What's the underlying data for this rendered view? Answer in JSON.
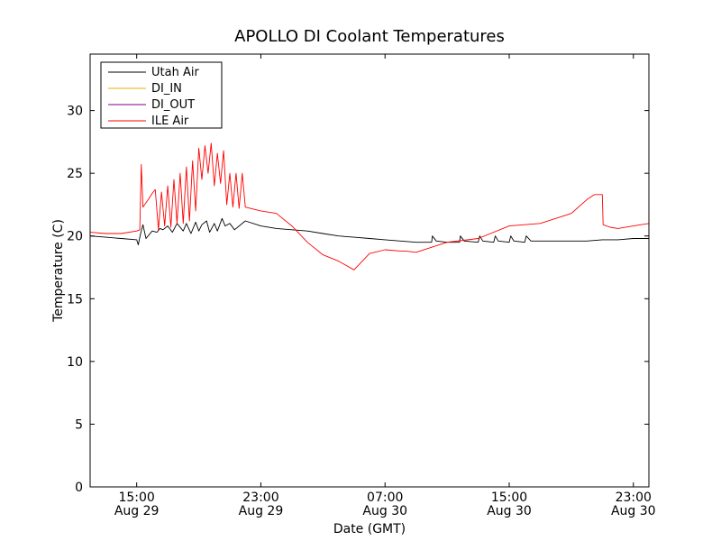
{
  "chart_data": {
    "type": "line",
    "title": "APOLLO DI Coolant Temperatures",
    "xlabel": "Date (GMT)",
    "ylabel": "Temperature (C)",
    "x_unit": "hours since Aug 29 12:00 GMT",
    "xlim": [
      0,
      36
    ],
    "ylim": [
      0,
      34.5
    ],
    "y_ticks": [
      0,
      5,
      10,
      15,
      20,
      25,
      30
    ],
    "x_ticks": [
      {
        "x": 3,
        "time": "15:00",
        "date": "Aug 29"
      },
      {
        "x": 11,
        "time": "23:00",
        "date": "Aug 29"
      },
      {
        "x": 19,
        "time": "07:00",
        "date": "Aug 30"
      },
      {
        "x": 27,
        "time": "15:00",
        "date": "Aug 30"
      },
      {
        "x": 35,
        "time": "23:00",
        "date": "Aug 30"
      }
    ],
    "legend_position": "top-left",
    "series": [
      {
        "name": "Utah Air",
        "color": "#000000",
        "x": [
          0,
          1,
          2,
          3,
          3.1,
          3.25,
          3.4,
          3.6,
          4,
          4.3,
          4.5,
          4.7,
          5,
          5.3,
          5.6,
          6,
          6.2,
          6.5,
          6.8,
          7,
          7.2,
          7.5,
          7.7,
          8,
          8.2,
          8.5,
          8.7,
          9,
          9.3,
          10,
          11,
          12,
          13,
          14,
          15,
          16,
          17,
          18,
          19,
          20,
          21,
          22,
          22.05,
          22.3,
          23,
          23.8,
          23.85,
          24.1,
          25,
          25.1,
          25.3,
          26,
          26.1,
          26.3,
          27,
          27.1,
          27.3,
          28,
          28.1,
          28.4,
          29,
          30,
          31,
          32,
          33,
          34,
          35,
          36
        ],
        "y": [
          20.0,
          19.9,
          19.8,
          19.7,
          19.3,
          20.2,
          20.9,
          19.8,
          20.4,
          20.3,
          20.6,
          20.5,
          20.8,
          20.3,
          21.0,
          20.4,
          21.0,
          20.2,
          21.1,
          20.4,
          20.9,
          21.2,
          20.3,
          21.0,
          20.4,
          21.4,
          20.8,
          21.0,
          20.5,
          21.2,
          20.8,
          20.6,
          20.5,
          20.4,
          20.2,
          20.0,
          19.9,
          19.8,
          19.7,
          19.6,
          19.5,
          19.5,
          20.0,
          19.6,
          19.5,
          19.5,
          20.0,
          19.6,
          19.5,
          20.0,
          19.6,
          19.5,
          20.0,
          19.6,
          19.5,
          20.0,
          19.6,
          19.5,
          20.0,
          19.6,
          19.6,
          19.6,
          19.6,
          19.6,
          19.7,
          19.7,
          19.8,
          19.8
        ]
      },
      {
        "name": "DI_IN",
        "color": "#e8b000",
        "x": [],
        "y": []
      },
      {
        "name": "DI_OUT",
        "color": "#800080",
        "x": [],
        "y": []
      },
      {
        "name": "ILE Air",
        "color": "#ff0000",
        "x": [
          0,
          1,
          2,
          3,
          3.2,
          3.3,
          3.4,
          3.8,
          4,
          4.2,
          4.4,
          4.6,
          4.8,
          5.0,
          5.2,
          5.4,
          5.6,
          5.8,
          6.0,
          6.2,
          6.4,
          6.6,
          6.8,
          7.0,
          7.2,
          7.4,
          7.6,
          7.8,
          8.0,
          8.2,
          8.4,
          8.6,
          8.8,
          9.0,
          9.2,
          9.4,
          9.6,
          9.8,
          10,
          11,
          12,
          13,
          14,
          15,
          16,
          17,
          18,
          19,
          20,
          20.3,
          21,
          23,
          25,
          27,
          29,
          31,
          32,
          32.5,
          33,
          33.05,
          33.5,
          34,
          35,
          36
        ],
        "y": [
          20.3,
          20.2,
          20.2,
          20.4,
          20.5,
          25.7,
          22.3,
          23.0,
          23.4,
          23.7,
          20.5,
          23.5,
          20.8,
          24.0,
          20.7,
          24.5,
          21.0,
          25.0,
          21.0,
          25.5,
          21.2,
          26.0,
          22.0,
          27.0,
          24.5,
          27.2,
          25.0,
          27.4,
          24.0,
          26.6,
          24.2,
          26.8,
          22.5,
          25.0,
          22.3,
          25.0,
          22.2,
          25.0,
          22.3,
          22.0,
          21.8,
          20.8,
          19.5,
          18.5,
          18.0,
          17.3,
          18.6,
          18.9,
          18.8,
          18.8,
          18.7,
          19.5,
          19.8,
          20.8,
          21.0,
          21.8,
          22.9,
          23.3,
          23.3,
          20.9,
          20.7,
          20.6,
          20.8,
          21.0
        ]
      }
    ]
  }
}
